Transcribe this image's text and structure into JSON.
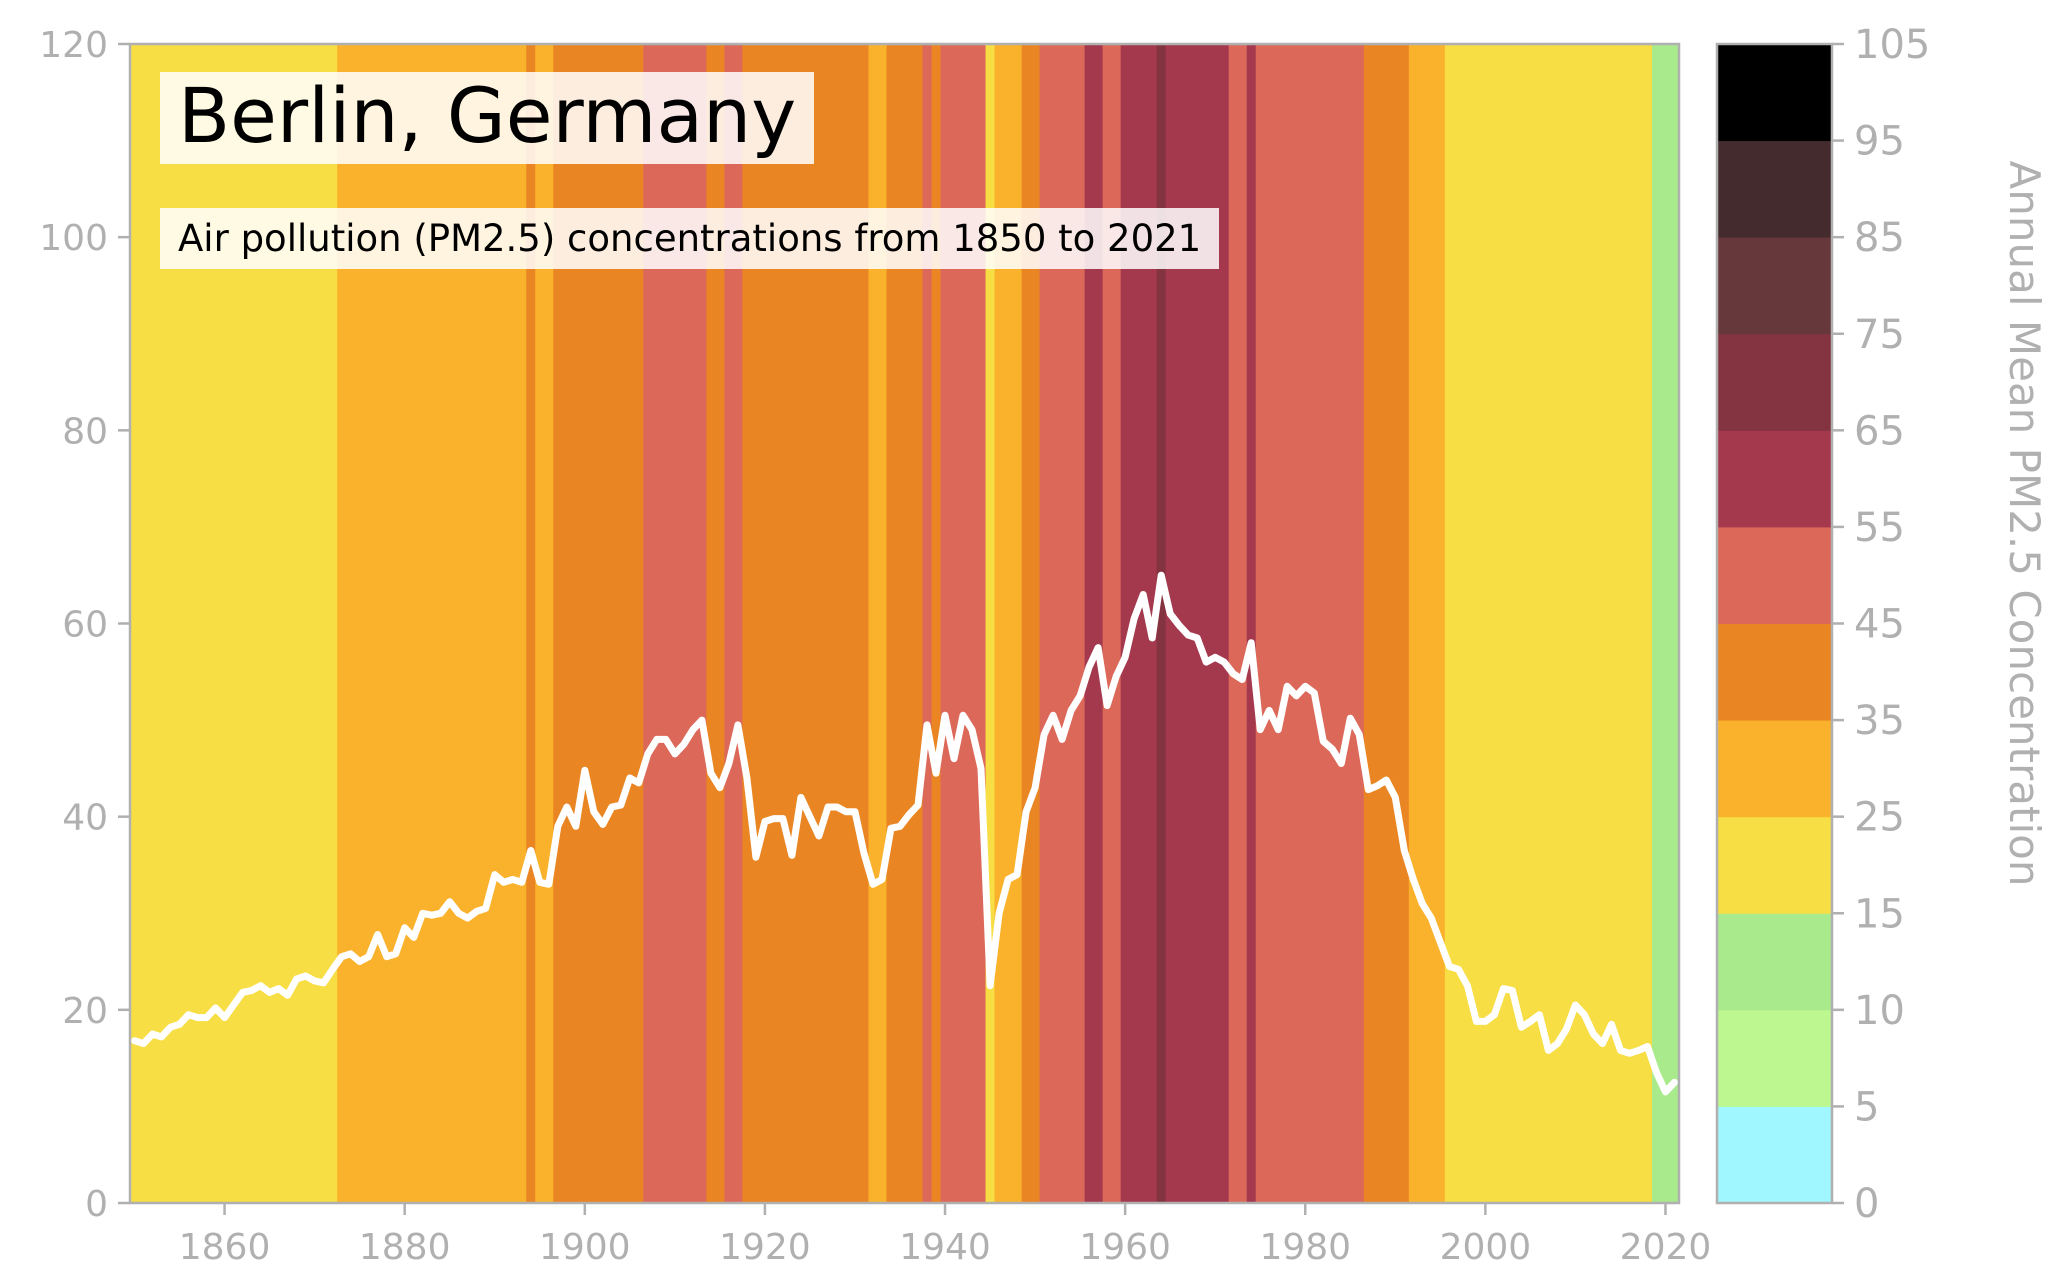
{
  "chart_data": {
    "type": "line",
    "title": "Berlin, Germany",
    "subtitle": "Air pollution (PM2.5) concentrations from 1850 to 2021",
    "xlim": [
      1850,
      2021
    ],
    "ylim": [
      0,
      120
    ],
    "x_ticks": [
      1860,
      1880,
      1900,
      1920,
      1940,
      1960,
      1980,
      2000,
      2020
    ],
    "y_ticks": [
      0,
      20,
      40,
      60,
      80,
      100,
      120
    ],
    "grid": false,
    "background": "stripes colored by annual value",
    "line_color": "#ffffff",
    "colorbar": {
      "label": "Annual Mean PM2.5 Concentration",
      "ticks": [
        0,
        5,
        10,
        15,
        25,
        35,
        45,
        55,
        65,
        75,
        85,
        95,
        105
      ],
      "bins": [
        {
          "min": 0,
          "max": 5,
          "color": "#a0f7ff"
        },
        {
          "min": 5,
          "max": 10,
          "color": "#bcf88f"
        },
        {
          "min": 10,
          "max": 15,
          "color": "#a9eb8c"
        },
        {
          "min": 15,
          "max": 25,
          "color": "#f7de45"
        },
        {
          "min": 25,
          "max": 35,
          "color": "#fab22c"
        },
        {
          "min": 35,
          "max": 45,
          "color": "#e98623"
        },
        {
          "min": 45,
          "max": 55,
          "color": "#dc6859"
        },
        {
          "min": 55,
          "max": 65,
          "color": "#a4394e"
        },
        {
          "min": 65,
          "max": 75,
          "color": "#843440"
        },
        {
          "min": 75,
          "max": 85,
          "color": "#66373b"
        },
        {
          "min": 85,
          "max": 95,
          "color": "#442b2d"
        },
        {
          "min": 95,
          "max": 105,
          "color": "#000000"
        }
      ]
    },
    "series": [
      {
        "x": [
          1850,
          1851,
          1852,
          1853,
          1854,
          1855,
          1856,
          1857,
          1858,
          1859,
          1860,
          1861,
          1862,
          1863,
          1864,
          1865,
          1866,
          1867,
          1868,
          1869,
          1870,
          1871,
          1872,
          1873,
          1874,
          1875,
          1876,
          1877,
          1878,
          1879,
          1880,
          1881,
          1882,
          1883,
          1884,
          1885,
          1886,
          1887,
          1888,
          1889,
          1890,
          1891,
          1892,
          1893,
          1894,
          1895,
          1896,
          1897,
          1898,
          1899,
          1900,
          1901,
          1902,
          1903,
          1904,
          1905,
          1906,
          1907,
          1908,
          1909,
          1910,
          1911,
          1912,
          1913,
          1914,
          1915,
          1916,
          1917,
          1918,
          1919,
          1920,
          1921,
          1922,
          1923,
          1924,
          1925,
          1926,
          1927,
          1928,
          1929,
          1930,
          1931,
          1932,
          1933,
          1934,
          1935,
          1936,
          1937,
          1938,
          1939,
          1940,
          1941,
          1942,
          1943,
          1944,
          1945,
          1946,
          1947,
          1948,
          1949,
          1950,
          1951,
          1952,
          1953,
          1954,
          1955,
          1956,
          1957,
          1958,
          1959,
          1960,
          1961,
          1962,
          1963,
          1964,
          1965,
          1966,
          1967,
          1968,
          1969,
          1970,
          1971,
          1972,
          1973,
          1974,
          1975,
          1976,
          1977,
          1978,
          1979,
          1980,
          1981,
          1982,
          1983,
          1984,
          1985,
          1986,
          1987,
          1988,
          1989,
          1990,
          1991,
          1992,
          1993,
          1994,
          1995,
          1996,
          1997,
          1998,
          1999,
          2000,
          2001,
          2002,
          2003,
          2004,
          2005,
          2006,
          2007,
          2008,
          2009,
          2010,
          2011,
          2012,
          2013,
          2014,
          2015,
          2016,
          2017,
          2018,
          2019,
          2020,
          2021
        ],
        "values": [
          16.8,
          16.5,
          17.5,
          17.2,
          18.2,
          18.5,
          19.5,
          19.2,
          19.2,
          20.2,
          19.2,
          20.5,
          21.8,
          22.0,
          22.5,
          21.8,
          22.2,
          21.5,
          23.2,
          23.5,
          23.0,
          22.8,
          24.2,
          25.5,
          25.8,
          25.0,
          25.5,
          27.8,
          25.5,
          25.8,
          28.5,
          27.5,
          30.0,
          29.8,
          30.0,
          31.2,
          30.0,
          29.5,
          30.2,
          30.5,
          34.0,
          33.2,
          33.5,
          33.2,
          36.5,
          33.2,
          33.0,
          39.0,
          41.0,
          39.0,
          44.8,
          40.5,
          39.2,
          41.0,
          41.2,
          44.0,
          43.5,
          46.5,
          48.0,
          48.0,
          46.5,
          47.5,
          49.0,
          50.0,
          44.5,
          43.0,
          45.5,
          49.5,
          44.0,
          35.8,
          39.5,
          39.8,
          39.8,
          36.0,
          42.0,
          40.0,
          38.0,
          41.0,
          41.0,
          40.5,
          40.5,
          36.2,
          33.0,
          33.5,
          38.8,
          39.0,
          40.2,
          41.2,
          49.5,
          44.5,
          50.5,
          46.0,
          50.5,
          49.0,
          45.0,
          22.5,
          30.0,
          33.5,
          34.0,
          40.5,
          43.0,
          48.5,
          50.5,
          48.0,
          51.0,
          52.5,
          55.5,
          57.5,
          51.5,
          54.5,
          56.5,
          60.5,
          63.0,
          58.5,
          65.0,
          61.0,
          59.8,
          58.8,
          58.5,
          56.0,
          56.5,
          56.0,
          54.8,
          54.2,
          58.0,
          49.0,
          51.0,
          49.0,
          53.5,
          52.5,
          53.5,
          52.8,
          47.8,
          47.0,
          45.5,
          50.2,
          48.5,
          42.8,
          43.2,
          43.8,
          42.0,
          36.5,
          33.5,
          31.0,
          29.5,
          27.0,
          24.5,
          24.2,
          22.5,
          18.8,
          18.8,
          19.5,
          22.2,
          22.0,
          18.2,
          18.8,
          19.5,
          15.8,
          16.5,
          18.0,
          20.5,
          19.5,
          17.5,
          16.5,
          18.5,
          15.8,
          15.5,
          15.8,
          16.2,
          13.5,
          11.5,
          12.5
        ]
      }
    ]
  }
}
